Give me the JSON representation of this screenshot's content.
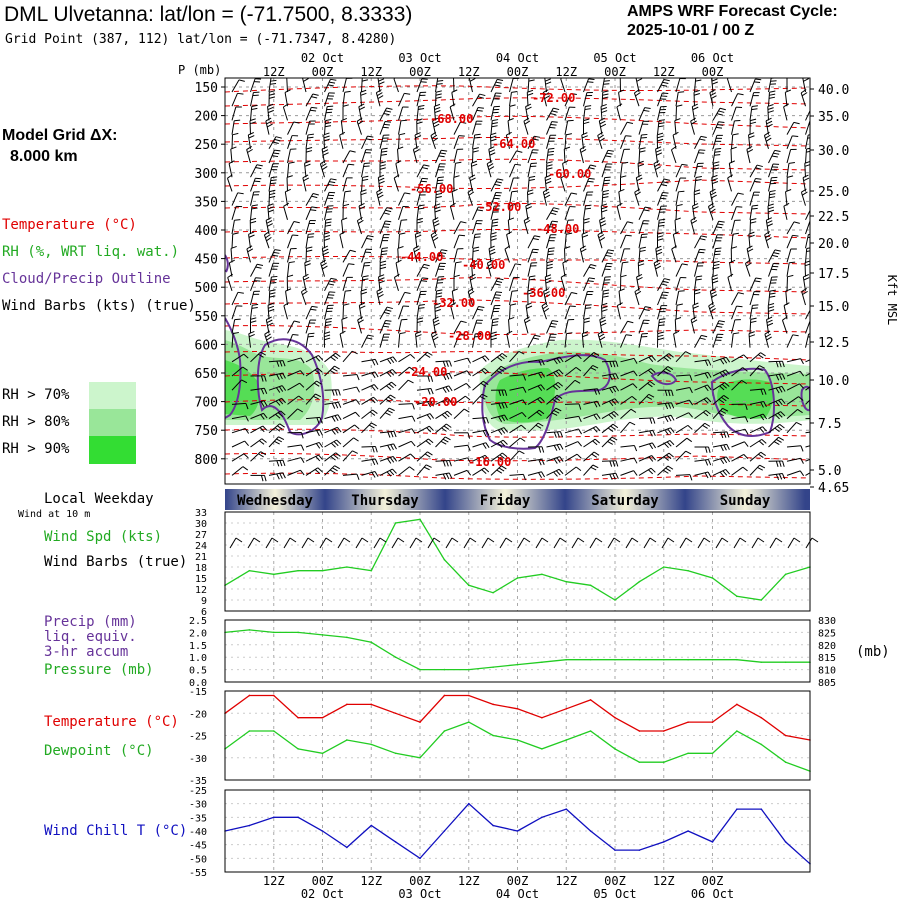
{
  "header": {
    "station_title": "DML Ulvetanna:  lat/lon = (-71.7500, 8.3333)",
    "grid_point": "Grid Point (387, 112) lat/lon = (-71.7347, 8.4280)",
    "forecast_label": "AMPS WRF Forecast Cycle:",
    "forecast_cycle": "2025-10-01 / 00  Z"
  },
  "legend": {
    "model_grid_label": "Model Grid ΔX:",
    "model_grid_value": "8.000 km",
    "temperature": "Temperature (°C)",
    "rh": "RH (%, WRT liq. wat.)",
    "cloud": "Cloud/Precip Outline",
    "wind_barbs": "Wind Barbs (kts) (true)",
    "rh70": "RH > 70%",
    "rh80": "RH > 80%",
    "rh90": "RH > 90%",
    "colors": {
      "rh70": "#ccf5cc",
      "rh80": "#99e699",
      "rh90": "#33dd33",
      "temp": "#e00000",
      "cloud": "#663399",
      "green": "#22cc22",
      "blue": "#1010c0"
    }
  },
  "time_axis": {
    "top_hour_labels": [
      "12Z",
      "00Z",
      "12Z",
      "00Z",
      "12Z",
      "00Z",
      "12Z",
      "00Z",
      "12Z",
      "00Z"
    ],
    "top_date_labels": [
      "02 Oct",
      "03 Oct",
      "04 Oct",
      "05 Oct",
      "06 Oct"
    ],
    "bottom_hour_labels": [
      "12Z",
      "00Z",
      "12Z",
      "00Z",
      "12Z",
      "00Z",
      "12Z",
      "00Z",
      "12Z",
      "00Z"
    ],
    "bottom_date_labels": [
      "02 Oct",
      "03 Oct",
      "04 Oct",
      "05 Oct",
      "06 Oct"
    ],
    "weekday_title": "Local Weekday",
    "weekdays": [
      "Wednesday",
      "Thursday",
      "Friday",
      "Saturday",
      "Sunday"
    ]
  },
  "sounding": {
    "p_axis_title": "P (mb)",
    "right_axis_title": "Kft MSL",
    "pressure_ticks": [
      "150",
      "200",
      "250",
      "300",
      "350",
      "400",
      "450",
      "500",
      "550",
      "600",
      "650",
      "700",
      "750",
      "800"
    ],
    "kft_ticks": [
      "40.0",
      "35.0",
      "30.0",
      "25.0",
      "22.5",
      "20.0",
      "17.5",
      "15.0",
      "12.5",
      "10.0",
      "7.5",
      "5.0",
      "4.65"
    ],
    "temp_labels": [
      "-72.00",
      "-68.00",
      "-64.00",
      "-60.00",
      "-56.00",
      "-52.00",
      "-48.00",
      "-44.00",
      "-40.00",
      "-36.00",
      "-32.00",
      "-28.00",
      "-24.00",
      "-20.00",
      "-16.00"
    ]
  },
  "panels": {
    "wind_sub": "Wind at 10 m",
    "wind_spd_label": "Wind Spd (kts)",
    "wind_barbs_label": "Wind Barbs (true)",
    "precip_label": "Precip (mm)",
    "precip_sub1": "liq. equiv.",
    "precip_sub2": "3-hr accum",
    "pressure_label": "Pressure (mb)",
    "pressure_unit": "(mb)",
    "temp_label": "Temperature (°C)",
    "dew_label": "Dewpoint (°C)",
    "windchill_label": "Wind Chill T (°C)"
  },
  "chart_data": [
    {
      "type": "line",
      "title": "Wind Spd (kts)",
      "x": [
        0,
        6,
        12,
        18,
        24,
        30,
        36,
        42,
        48,
        54,
        60,
        66,
        72,
        78,
        84,
        90,
        96,
        102,
        108,
        114,
        120,
        126,
        132,
        138,
        144
      ],
      "values": [
        13,
        17,
        16,
        17,
        17,
        18,
        17,
        30,
        31,
        20,
        13,
        11,
        15,
        16,
        14,
        13,
        9,
        14,
        18,
        17,
        15,
        10,
        9,
        16,
        18
      ],
      "yticks": [
        "33",
        "30",
        "27",
        "24",
        "21",
        "18",
        "15",
        "12",
        "9",
        "6"
      ],
      "ylim": [
        6,
        33
      ]
    },
    {
      "type": "line",
      "title": "Pressure (mb)",
      "x": [
        0,
        6,
        12,
        18,
        24,
        30,
        36,
        42,
        48,
        54,
        60,
        66,
        72,
        78,
        84,
        90,
        96,
        102,
        108,
        114,
        120,
        126,
        132,
        138,
        144
      ],
      "values": [
        825,
        826,
        825,
        825,
        824,
        823,
        821,
        815,
        810,
        810,
        810,
        811,
        812,
        813,
        814,
        814,
        814,
        814,
        814,
        814,
        814,
        814,
        813,
        813,
        813
      ],
      "yticks_left": [
        "2.5",
        "2.0",
        "1.5",
        "1.0",
        "0.5",
        "0.0"
      ],
      "yticks_right": [
        "830",
        "825",
        "820",
        "815",
        "810",
        "805"
      ],
      "ylim": [
        805,
        830
      ]
    },
    {
      "type": "line",
      "title": "Temperature / Dewpoint (°C)",
      "x": [
        0,
        6,
        12,
        18,
        24,
        30,
        36,
        42,
        48,
        54,
        60,
        66,
        72,
        78,
        84,
        90,
        96,
        102,
        108,
        114,
        120,
        126,
        132,
        138,
        144
      ],
      "series": [
        {
          "name": "Temperature",
          "values": [
            -20,
            -16,
            -16,
            -21,
            -21,
            -18,
            -18,
            -20,
            -22,
            -16,
            -16,
            -18,
            -19,
            -21,
            -19,
            -17,
            -21,
            -24,
            -24,
            -22,
            -22,
            -18,
            -21,
            -25,
            -26
          ]
        },
        {
          "name": "Dewpoint",
          "values": [
            -28,
            -24,
            -24,
            -28,
            -29,
            -26,
            -27,
            -29,
            -30,
            -24,
            -22,
            -25,
            -26,
            -28,
            -26,
            -24,
            -28,
            -31,
            -31,
            -29,
            -29,
            -24,
            -27,
            -31,
            -33
          ]
        }
      ],
      "yticks": [
        "-15",
        "-20",
        "-25",
        "-30",
        "-35"
      ],
      "ylim": [
        -35,
        -15
      ]
    },
    {
      "type": "line",
      "title": "Wind Chill T (°C)",
      "x": [
        0,
        6,
        12,
        18,
        24,
        30,
        36,
        42,
        48,
        54,
        60,
        66,
        72,
        78,
        84,
        90,
        96,
        102,
        108,
        114,
        120,
        126,
        132,
        138,
        144
      ],
      "values": [
        -40,
        -38,
        -35,
        -35,
        -40,
        -46,
        -38,
        -44,
        -50,
        -40,
        -30,
        -38,
        -40,
        -35,
        -32,
        -40,
        -47,
        -47,
        -44,
        -40,
        -44,
        -32,
        -32,
        -44,
        -52
      ],
      "yticks": [
        "-25",
        "-30",
        "-35",
        "-40",
        "-45",
        "-50",
        "-55"
      ],
      "ylim": [
        -55,
        -25
      ]
    }
  ]
}
